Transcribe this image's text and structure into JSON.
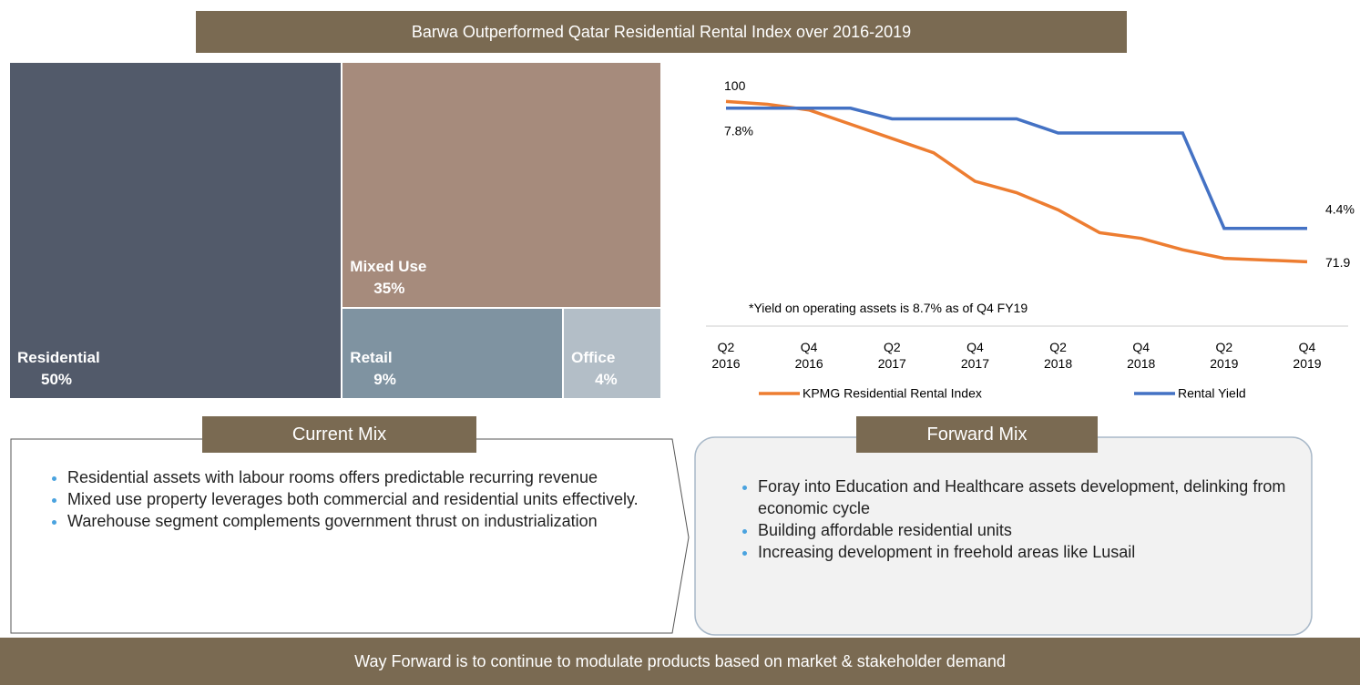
{
  "title": "Barwa Outperformed Qatar Residential Rental Index over 2016-2019",
  "chart_data": [
    {
      "type": "treemap",
      "categories": [
        "Residential",
        "Mixed Use",
        "Retail",
        "Office"
      ],
      "values": [
        50,
        35,
        9,
        4
      ],
      "value_labels": [
        "50%",
        "35%",
        "9%",
        "4%"
      ],
      "colors": [
        "#525a6a",
        "#a68b7c",
        "#7f93a1",
        "#b3bec7"
      ]
    },
    {
      "type": "line",
      "categories": [
        "Q2 2016",
        null,
        "Q4 2016",
        null,
        "Q2 2017",
        null,
        "Q4 2017",
        null,
        "Q2 2018",
        null,
        "Q4 2018",
        null,
        "Q2 2019",
        null,
        "Q4 2019"
      ],
      "ylim": [
        63.5,
        105
      ],
      "y2lim": [
        2.1,
        8.8
      ],
      "series": [
        {
          "name": "KPMG Residential Rental Index",
          "color": "#ed7d31",
          "values": [
            100,
            99.5,
            98.5,
            96,
            93.5,
            91,
            86,
            84,
            81,
            77,
            76,
            74,
            72.5,
            72.2,
            71.9
          ],
          "value_labels": [
            "100",
            null,
            null,
            null,
            null,
            null,
            null,
            null,
            null,
            null,
            null,
            null,
            null,
            null,
            "71.9"
          ]
        },
        {
          "name": "Rental Yield",
          "color": "#4472c4",
          "axis": "y2",
          "values": [
            7.8,
            7.8,
            7.8,
            7.8,
            7.5,
            7.5,
            7.5,
            7.5,
            7.1,
            7.1,
            7.1,
            7.1,
            4.4,
            4.4,
            4.4
          ],
          "value_labels": [
            "7.8%",
            null,
            null,
            null,
            null,
            null,
            null,
            null,
            null,
            null,
            null,
            null,
            null,
            null,
            "4.4%"
          ]
        }
      ],
      "note": "*Yield on operating assets is 8.7% as of Q4 FY19"
    }
  ],
  "panels": [
    {
      "title": "Current Mix",
      "bullets": [
        "Residential assets with labour rooms offers predictable recurring revenue",
        "Mixed use property leverages both commercial and residential units effectively.",
        "Warehouse segment complements government thrust on industrialization"
      ]
    },
    {
      "title": "Forward Mix",
      "bullets": [
        "Foray into Education and Healthcare assets development, delinking from economic cycle",
        "Building affordable residential units",
        "Increasing development in freehold areas like Lusail"
      ]
    }
  ],
  "footer": "Way Forward is to continue to modulate products based on market & stakeholder demand"
}
